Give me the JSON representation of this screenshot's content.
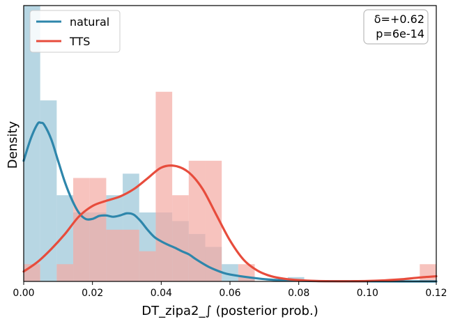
{
  "chart_data": {
    "type": "histogram",
    "xlabel": "DT_zipa2_∫ (posterior prob.)",
    "ylabel": "Density",
    "xlim": [
      0.0,
      0.12
    ],
    "ylim": [
      0,
      64
    ],
    "x_ticks": [
      "0.00",
      "0.02",
      "0.04",
      "0.06",
      "0.08",
      "0.10",
      "0.12"
    ],
    "x_tick_values": [
      0.0,
      0.02,
      0.04,
      0.06,
      0.08,
      0.1,
      0.12
    ],
    "y_ticks_shown": false,
    "grid": false,
    "legend": {
      "position": "top-left",
      "entries": [
        {
          "label": "natural",
          "color": "#2e86ab"
        },
        {
          "label": "TTS",
          "color": "#e74c3c"
        }
      ]
    },
    "annotation": {
      "line1": "δ=+0.62",
      "line2": "p=6e-14",
      "position": "top-right"
    },
    "series": [
      {
        "name": "natural",
        "color": "#2e86ab",
        "bar_color": "#9fc8da",
        "bin_edges": [
          0.0,
          0.0048,
          0.0096,
          0.0144,
          0.0192,
          0.024,
          0.0288,
          0.0336,
          0.0384,
          0.0432,
          0.048,
          0.0528,
          0.0576,
          0.0624,
          0.0672,
          0.072,
          0.0768,
          0.0816
        ],
        "heights": [
          64,
          42,
          20,
          16,
          16,
          20,
          25,
          16,
          16,
          14,
          11,
          8,
          4,
          1,
          0,
          0,
          1
        ],
        "kde_x": [
          0.0,
          0.002,
          0.004,
          0.005,
          0.006,
          0.008,
          0.01,
          0.012,
          0.014,
          0.016,
          0.018,
          0.02,
          0.022,
          0.024,
          0.026,
          0.028,
          0.03,
          0.032,
          0.034,
          0.036,
          0.038,
          0.04,
          0.042,
          0.044,
          0.046,
          0.048,
          0.05,
          0.052,
          0.054,
          0.056,
          0.058,
          0.06,
          0.064,
          0.068,
          0.072,
          0.076,
          0.08,
          0.085,
          0.09,
          0.1,
          0.11,
          0.12
        ],
        "kde_y": [
          28,
          33,
          36.5,
          36.8,
          36.3,
          33,
          28,
          23,
          19,
          16,
          14.5,
          14.5,
          15.2,
          15.3,
          15.0,
          15.3,
          15.8,
          15.5,
          14.0,
          12.0,
          10.3,
          9.3,
          8.5,
          7.8,
          7.0,
          6.3,
          5.2,
          4.2,
          3.3,
          2.6,
          2.0,
          1.6,
          1.1,
          0.7,
          0.4,
          0.25,
          0.15,
          0.08,
          0.04,
          0.01,
          0.0,
          0.0
        ]
      },
      {
        "name": "TTS",
        "color": "#e74c3c",
        "bar_color": "#f4aaa3",
        "bin_edges": [
          0.0,
          0.0048,
          0.0096,
          0.0144,
          0.0192,
          0.024,
          0.0288,
          0.0336,
          0.0384,
          0.0432,
          0.048,
          0.0528,
          0.0576,
          0.0624,
          0.0672,
          0.072,
          0.0768,
          0.0816,
          0.0864,
          0.0912,
          0.096,
          0.1008,
          0.1056,
          0.1104,
          0.1152,
          0.12
        ],
        "heights": [
          4,
          0,
          4,
          24,
          24,
          12,
          12,
          7,
          44,
          20,
          28,
          28,
          0,
          4,
          0,
          0,
          0,
          0,
          0,
          0,
          0,
          0,
          0,
          0,
          4
        ],
        "kde_x": [
          0.0,
          0.004,
          0.008,
          0.012,
          0.016,
          0.02,
          0.024,
          0.028,
          0.032,
          0.036,
          0.04,
          0.044,
          0.048,
          0.052,
          0.056,
          0.06,
          0.064,
          0.068,
          0.072,
          0.076,
          0.08,
          0.085,
          0.09,
          0.095,
          0.1,
          0.105,
          0.11,
          0.115,
          0.12
        ],
        "kde_y": [
          2.3,
          4.5,
          7.5,
          11.0,
          15.0,
          17.5,
          18.7,
          19.7,
          21.4,
          23.9,
          26.4,
          26.8,
          25.3,
          21.5,
          15.5,
          9.5,
          5.0,
          2.5,
          1.2,
          0.6,
          0.3,
          0.1,
          0.05,
          0.05,
          0.1,
          0.25,
          0.5,
          0.9,
          1.2
        ]
      }
    ]
  }
}
